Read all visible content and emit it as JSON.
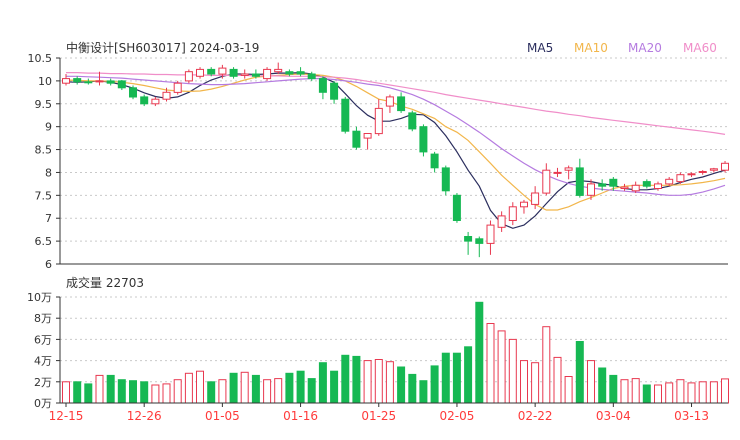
{
  "title": "中衡设计[SH603017] 2024-03-19",
  "volume_title": "成交量 22703",
  "colors": {
    "up": "#e8384f",
    "down": "#16b853",
    "ma5": "#2b2e5e",
    "ma10": "#f2b64b",
    "ma20": "#b57be0",
    "ma60": "#f08ec9"
  },
  "chart_data": {
    "type": "candlestick",
    "price_axis": {
      "ticks": [
        "10.5",
        "10",
        "9.5",
        "9",
        "8.5",
        "8",
        "7.5",
        "7",
        "6.5",
        "6"
      ],
      "ylim": [
        6,
        10.5
      ]
    },
    "volume_axis": {
      "ticks": [
        "10万",
        "8万",
        "6万",
        "4万",
        "2万",
        "0万"
      ],
      "ylim": [
        0,
        100000
      ]
    },
    "x_labels": [
      {
        "index": 0,
        "text": "12-15"
      },
      {
        "index": 7,
        "text": "12-26"
      },
      {
        "index": 14,
        "text": "01-05"
      },
      {
        "index": 21,
        "text": "01-16"
      },
      {
        "index": 28,
        "text": "01-25"
      },
      {
        "index": 35,
        "text": "02-05"
      },
      {
        "index": 42,
        "text": "02-22"
      },
      {
        "index": 49,
        "text": "03-04"
      },
      {
        "index": 56,
        "text": "03-13"
      }
    ],
    "legend": [
      "MA5",
      "MA10",
      "MA20",
      "MA60"
    ],
    "candles": [
      {
        "o": 9.95,
        "h": 10.15,
        "l": 9.9,
        "c": 10.05,
        "v": 20000
      },
      {
        "o": 10.05,
        "h": 10.1,
        "l": 9.92,
        "c": 9.98,
        "v": 20000
      },
      {
        "o": 9.98,
        "h": 10.05,
        "l": 9.92,
        "c": 9.97,
        "v": 18000
      },
      {
        "o": 9.98,
        "h": 10.2,
        "l": 9.9,
        "c": 10.0,
        "v": 26000
      },
      {
        "o": 10.0,
        "h": 10.05,
        "l": 9.9,
        "c": 9.95,
        "v": 26000
      },
      {
        "o": 10.0,
        "h": 10.02,
        "l": 9.8,
        "c": 9.85,
        "v": 22000
      },
      {
        "o": 9.85,
        "h": 9.9,
        "l": 9.6,
        "c": 9.65,
        "v": 21000
      },
      {
        "o": 9.65,
        "h": 9.7,
        "l": 9.45,
        "c": 9.5,
        "v": 20000
      },
      {
        "o": 9.5,
        "h": 9.65,
        "l": 9.45,
        "c": 9.6,
        "v": 17000
      },
      {
        "o": 9.6,
        "h": 9.85,
        "l": 9.55,
        "c": 9.75,
        "v": 18000
      },
      {
        "o": 9.75,
        "h": 10.0,
        "l": 9.7,
        "c": 9.95,
        "v": 22000
      },
      {
        "o": 10.0,
        "h": 10.25,
        "l": 9.95,
        "c": 10.2,
        "v": 28000
      },
      {
        "o": 10.1,
        "h": 10.3,
        "l": 10.05,
        "c": 10.25,
        "v": 30000
      },
      {
        "o": 10.25,
        "h": 10.3,
        "l": 10.1,
        "c": 10.15,
        "v": 20000
      },
      {
        "o": 10.15,
        "h": 10.35,
        "l": 10.05,
        "c": 10.28,
        "v": 22000
      },
      {
        "o": 10.25,
        "h": 10.3,
        "l": 10.05,
        "c": 10.1,
        "v": 28000
      },
      {
        "o": 10.12,
        "h": 10.25,
        "l": 10.05,
        "c": 10.15,
        "v": 29000
      },
      {
        "o": 10.15,
        "h": 10.25,
        "l": 10.05,
        "c": 10.1,
        "v": 26000
      },
      {
        "o": 10.05,
        "h": 10.3,
        "l": 10.0,
        "c": 10.25,
        "v": 22000
      },
      {
        "o": 10.2,
        "h": 10.4,
        "l": 10.15,
        "c": 10.25,
        "v": 23000
      },
      {
        "o": 10.2,
        "h": 10.25,
        "l": 10.1,
        "c": 10.15,
        "v": 28000
      },
      {
        "o": 10.2,
        "h": 10.3,
        "l": 10.1,
        "c": 10.15,
        "v": 30000
      },
      {
        "o": 10.15,
        "h": 10.2,
        "l": 10.0,
        "c": 10.05,
        "v": 23000
      },
      {
        "o": 10.05,
        "h": 10.1,
        "l": 9.6,
        "c": 9.75,
        "v": 38000
      },
      {
        "o": 9.95,
        "h": 10.0,
        "l": 9.5,
        "c": 9.6,
        "v": 30000
      },
      {
        "o": 9.6,
        "h": 9.65,
        "l": 8.85,
        "c": 8.9,
        "v": 45000
      },
      {
        "o": 8.9,
        "h": 9.0,
        "l": 8.5,
        "c": 8.55,
        "v": 44000
      },
      {
        "o": 8.75,
        "h": 8.85,
        "l": 8.5,
        "c": 8.85,
        "v": 40000
      },
      {
        "o": 8.85,
        "h": 9.6,
        "l": 8.8,
        "c": 9.4,
        "v": 41000
      },
      {
        "o": 9.45,
        "h": 9.7,
        "l": 9.3,
        "c": 9.65,
        "v": 39000
      },
      {
        "o": 9.65,
        "h": 9.75,
        "l": 9.3,
        "c": 9.35,
        "v": 34000
      },
      {
        "o": 9.3,
        "h": 9.35,
        "l": 8.9,
        "c": 8.95,
        "v": 27000
      },
      {
        "o": 9.0,
        "h": 9.05,
        "l": 8.35,
        "c": 8.45,
        "v": 21000
      },
      {
        "o": 8.4,
        "h": 8.45,
        "l": 8.0,
        "c": 8.1,
        "v": 35000
      },
      {
        "o": 8.1,
        "h": 8.15,
        "l": 7.5,
        "c": 7.6,
        "v": 47000
      },
      {
        "o": 7.5,
        "h": 7.55,
        "l": 6.9,
        "c": 6.95,
        "v": 47000
      },
      {
        "o": 6.6,
        "h": 6.7,
        "l": 6.2,
        "c": 6.5,
        "v": 53000
      },
      {
        "o": 6.55,
        "h": 6.6,
        "l": 6.15,
        "c": 6.45,
        "v": 95000
      },
      {
        "o": 6.45,
        "h": 6.95,
        "l": 6.2,
        "c": 6.85,
        "v": 75000
      },
      {
        "o": 6.8,
        "h": 7.15,
        "l": 6.7,
        "c": 7.05,
        "v": 68000
      },
      {
        "o": 6.95,
        "h": 7.35,
        "l": 6.85,
        "c": 7.25,
        "v": 60000
      },
      {
        "o": 7.25,
        "h": 7.4,
        "l": 7.1,
        "c": 7.35,
        "v": 40000
      },
      {
        "o": 7.3,
        "h": 7.7,
        "l": 7.2,
        "c": 7.55,
        "v": 38000
      },
      {
        "o": 7.55,
        "h": 8.2,
        "l": 7.5,
        "c": 8.05,
        "v": 72000
      },
      {
        "o": 8.0,
        "h": 8.1,
        "l": 7.9,
        "c": 8.0,
        "v": 43000
      },
      {
        "o": 8.05,
        "h": 8.15,
        "l": 7.85,
        "c": 8.1,
        "v": 25000
      },
      {
        "o": 8.1,
        "h": 8.3,
        "l": 7.45,
        "c": 7.5,
        "v": 58000
      },
      {
        "o": 7.5,
        "h": 7.85,
        "l": 7.4,
        "c": 7.75,
        "v": 40000
      },
      {
        "o": 7.75,
        "h": 7.85,
        "l": 7.6,
        "c": 7.7,
        "v": 33000
      },
      {
        "o": 7.85,
        "h": 7.9,
        "l": 7.6,
        "c": 7.7,
        "v": 26000
      },
      {
        "o": 7.65,
        "h": 7.75,
        "l": 7.6,
        "c": 7.68,
        "v": 22000
      },
      {
        "o": 7.6,
        "h": 7.8,
        "l": 7.55,
        "c": 7.72,
        "v": 23000
      },
      {
        "o": 7.8,
        "h": 7.85,
        "l": 7.65,
        "c": 7.7,
        "v": 17000
      },
      {
        "o": 7.65,
        "h": 7.8,
        "l": 7.6,
        "c": 7.75,
        "v": 17000
      },
      {
        "o": 7.75,
        "h": 7.9,
        "l": 7.7,
        "c": 7.85,
        "v": 19000
      },
      {
        "o": 7.8,
        "h": 8.0,
        "l": 7.75,
        "c": 7.95,
        "v": 22000
      },
      {
        "o": 7.95,
        "h": 8.0,
        "l": 7.9,
        "c": 7.97,
        "v": 19000
      },
      {
        "o": 8.0,
        "h": 8.05,
        "l": 7.95,
        "c": 8.02,
        "v": 20000
      },
      {
        "o": 8.05,
        "h": 8.1,
        "l": 8.0,
        "c": 8.08,
        "v": 20000
      },
      {
        "o": 8.05,
        "h": 8.25,
        "l": 8.0,
        "c": 8.2,
        "v": 22703
      }
    ],
    "ma": {
      "MA5": [
        9.98,
        9.97,
        9.98,
        10.0,
        9.97,
        9.92,
        9.84,
        9.74,
        9.66,
        9.62,
        9.65,
        9.75,
        9.9,
        10.02,
        10.1,
        10.15,
        10.15,
        10.14,
        10.15,
        10.17,
        10.17,
        10.18,
        10.15,
        10.08,
        9.97,
        9.72,
        9.46,
        9.25,
        9.12,
        9.12,
        9.18,
        9.27,
        9.26,
        9.09,
        8.8,
        8.45,
        8.05,
        7.7,
        7.17,
        6.88,
        6.78,
        6.85,
        7.05,
        7.32,
        7.58,
        7.78,
        7.82,
        7.8,
        7.75,
        7.72,
        7.65,
        7.62,
        7.62,
        7.65,
        7.7,
        7.78,
        7.85,
        7.9,
        7.98,
        8.05
      ],
      "MA10": [
        10.02,
        10.01,
        10.0,
        10.0,
        9.99,
        9.97,
        9.94,
        9.9,
        9.85,
        9.8,
        9.78,
        9.77,
        9.78,
        9.82,
        9.88,
        9.95,
        10.02,
        10.08,
        10.1,
        10.12,
        10.14,
        10.15,
        10.14,
        10.12,
        10.08,
        10.0,
        9.88,
        9.74,
        9.6,
        9.55,
        9.45,
        9.38,
        9.28,
        9.18,
        9.0,
        8.88,
        8.7,
        8.45,
        8.2,
        7.94,
        7.72,
        7.5,
        7.3,
        7.18,
        7.18,
        7.25,
        7.36,
        7.45,
        7.55,
        7.65,
        7.7,
        7.72,
        7.72,
        7.72,
        7.72,
        7.73,
        7.75,
        7.78,
        7.82,
        7.87
      ],
      "MA20": [
        10.1,
        10.1,
        10.09,
        10.08,
        10.07,
        10.06,
        10.04,
        10.02,
        10.0,
        9.98,
        9.96,
        9.94,
        9.93,
        9.92,
        9.92,
        9.93,
        9.94,
        9.96,
        9.98,
        10.0,
        10.02,
        10.04,
        10.05,
        10.05,
        10.03,
        10.0,
        9.97,
        9.93,
        9.9,
        9.85,
        9.78,
        9.7,
        9.6,
        9.48,
        9.34,
        9.2,
        9.04,
        8.88,
        8.7,
        8.52,
        8.36,
        8.2,
        8.06,
        7.94,
        7.84,
        7.76,
        7.7,
        7.66,
        7.63,
        7.61,
        7.59,
        7.57,
        7.55,
        7.52,
        7.5,
        7.5,
        7.52,
        7.57,
        7.64,
        7.72
      ],
      "MA60": [
        10.18,
        10.18,
        10.17,
        10.17,
        10.16,
        10.16,
        10.15,
        10.15,
        10.14,
        10.14,
        10.13,
        10.13,
        10.13,
        10.12,
        10.12,
        10.12,
        10.12,
        10.11,
        10.11,
        10.11,
        10.1,
        10.1,
        10.1,
        10.09,
        10.08,
        10.06,
        10.03,
        9.99,
        9.95,
        9.91,
        9.87,
        9.83,
        9.79,
        9.75,
        9.7,
        9.66,
        9.62,
        9.58,
        9.54,
        9.5,
        9.46,
        9.42,
        9.38,
        9.34,
        9.31,
        9.27,
        9.24,
        9.2,
        9.17,
        9.14,
        9.11,
        9.08,
        9.05,
        9.02,
        8.99,
        8.96,
        8.93,
        8.9,
        8.87,
        8.83
      ]
    }
  }
}
